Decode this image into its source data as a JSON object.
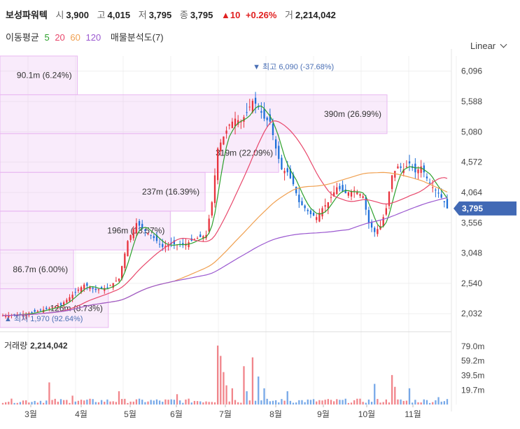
{
  "header": {
    "name": "보성파워텍",
    "open_label": "시",
    "open": "3,900",
    "high_label": "고",
    "high": "4,015",
    "low_label": "저",
    "low": "3,795",
    "close_label": "종",
    "close": "3,795",
    "change_arrow": "▲",
    "change": "10",
    "change_pct": "+0.26%",
    "volume_label": "거",
    "volume": "2,214,042"
  },
  "ma_legend": {
    "label": "이동평균",
    "p5": "5",
    "p20": "20",
    "p60": "60",
    "p120": "120",
    "colors": {
      "p5": "#2ca02c",
      "p20": "#e8476b",
      "p60": "#f0a050",
      "p120": "#9b59d0"
    },
    "extra": "매물분석도(7)"
  },
  "scale_selector": {
    "label": "Linear",
    "icon": "chevron-down-icon"
  },
  "volume_pane": {
    "label": "거래량",
    "value": "2,214,042"
  },
  "colors": {
    "up": "#e8333d",
    "down": "#1e6fd9",
    "profile": "#e9b8f2",
    "price_tag": "#4169b5"
  },
  "chart_data": {
    "type": "candlestick",
    "yaxis_ticks": [
      "6,096",
      "5,588",
      "5,080",
      "4,572",
      "4,064",
      "3,556",
      "3,048",
      "2,540",
      "2,032"
    ],
    "ylim": [
      1800,
      6350
    ],
    "last_price": "3,795",
    "x_ticks": [
      "3월",
      "4월",
      "5월",
      "6월",
      "7월",
      "8월",
      "9월",
      "10월",
      "11월"
    ],
    "high_annotation": "최고 6,090 (-37.68%)",
    "low_annotation": "최저 1,970 (92.64%)",
    "volume_ticks": [
      "79.0m",
      "59.2m",
      "39.5m",
      "19.7m"
    ],
    "volume_profile": [
      {
        "label": "126m (8.73%)",
        "lo": 1800,
        "hi": 2450,
        "rel": 0.28
      },
      {
        "label": "86.7m (6.00%)",
        "lo": 2450,
        "hi": 3100,
        "rel": 0.19
      },
      {
        "label": "196m (13.57%)",
        "lo": 3100,
        "hi": 3750,
        "rel": 0.44
      },
      {
        "label": "237m (16.39%)",
        "lo": 3750,
        "hi": 4400,
        "rel": 0.53
      },
      {
        "label": "319m (22.09%)",
        "lo": 4400,
        "hi": 5050,
        "rel": 0.72
      },
      {
        "label": "390m (26.99%)",
        "lo": 5050,
        "hi": 5700,
        "rel": 1.0
      },
      {
        "label": "90.1m (6.24%)",
        "lo": 5700,
        "hi": 6350,
        "rel": 0.2
      }
    ],
    "close_path": [
      [
        0,
        2000
      ],
      [
        8,
        2030
      ],
      [
        15,
        2110
      ],
      [
        20,
        2180
      ],
      [
        24,
        2350
      ],
      [
        28,
        2520
      ],
      [
        32,
        2430
      ],
      [
        36,
        2470
      ],
      [
        40,
        2620
      ],
      [
        43,
        3250
      ],
      [
        46,
        3550
      ],
      [
        49,
        3420
      ],
      [
        52,
        3300
      ],
      [
        55,
        3150
      ],
      [
        58,
        3200
      ],
      [
        62,
        3180
      ],
      [
        66,
        3280
      ],
      [
        70,
        3350
      ],
      [
        72,
        3900
      ],
      [
        74,
        4800
      ],
      [
        76,
        5000
      ],
      [
        78,
        5200
      ],
      [
        80,
        5300
      ],
      [
        82,
        5250
      ],
      [
        84,
        5400
      ],
      [
        86,
        5600
      ],
      [
        88,
        5500
      ],
      [
        90,
        5300
      ],
      [
        92,
        5250
      ],
      [
        94,
        4800
      ],
      [
        96,
        4450
      ],
      [
        98,
        4400
      ],
      [
        100,
        4200
      ],
      [
        102,
        3900
      ],
      [
        104,
        3800
      ],
      [
        106,
        3700
      ],
      [
        108,
        3650
      ],
      [
        110,
        3800
      ],
      [
        112,
        3900
      ],
      [
        115,
        4150
      ],
      [
        118,
        4050
      ],
      [
        121,
        4100
      ],
      [
        124,
        4000
      ],
      [
        126,
        3550
      ],
      [
        128,
        3400
      ],
      [
        130,
        3500
      ],
      [
        132,
        3800
      ],
      [
        134,
        4350
      ],
      [
        136,
        4500
      ],
      [
        138,
        4450
      ],
      [
        140,
        4550
      ],
      [
        142,
        4400
      ],
      [
        144,
        4500
      ],
      [
        146,
        4300
      ],
      [
        148,
        4150
      ],
      [
        150,
        4050
      ],
      [
        152,
        3900
      ],
      [
        153,
        3795
      ]
    ],
    "volume_spikes": [
      [
        16,
        30
      ],
      [
        24,
        12
      ],
      [
        40,
        18
      ],
      [
        60,
        14
      ],
      [
        74,
        80
      ],
      [
        75,
        66
      ],
      [
        76,
        44
      ],
      [
        77,
        26
      ],
      [
        79,
        22
      ],
      [
        83,
        52
      ],
      [
        84,
        18
      ],
      [
        86,
        64
      ],
      [
        88,
        38
      ],
      [
        90,
        22
      ],
      [
        98,
        18
      ],
      [
        128,
        28
      ],
      [
        134,
        40
      ],
      [
        135,
        24
      ],
      [
        140,
        22
      ],
      [
        150,
        10
      ]
    ]
  }
}
